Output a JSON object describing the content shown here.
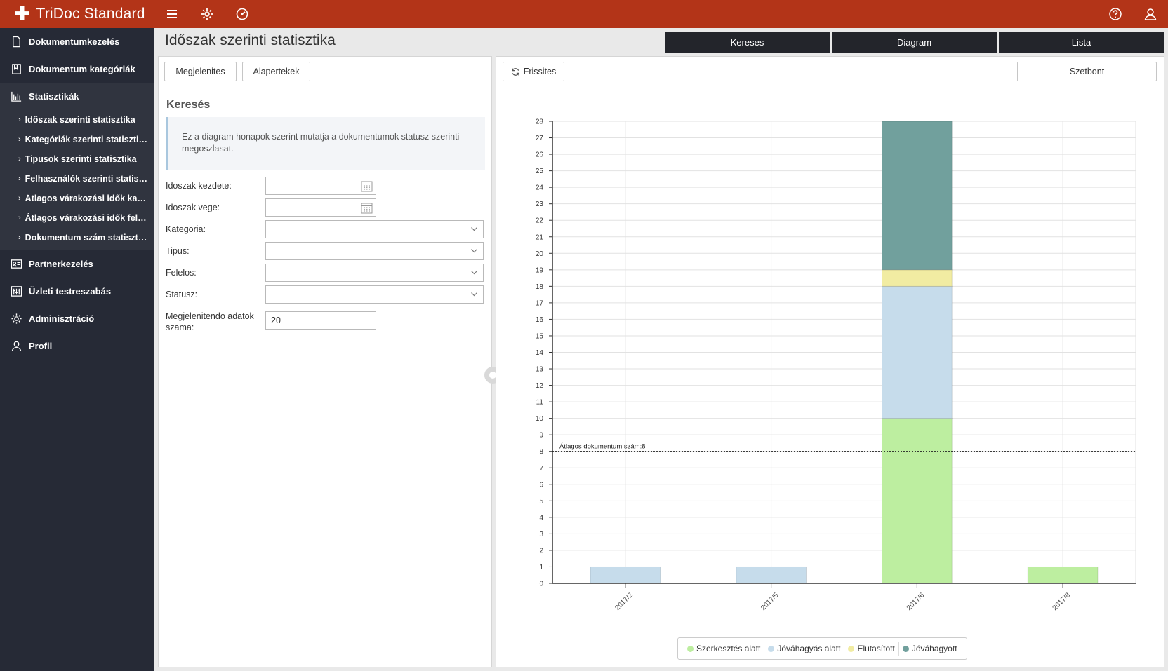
{
  "app": {
    "title": "TriDoc Standard"
  },
  "topbar": {
    "icons": [
      "menu-icon",
      "gear-icon",
      "dashboard-icon",
      "help-icon",
      "user-icon"
    ]
  },
  "sidebar": {
    "items": [
      {
        "label": "Dokumentumkezelés",
        "icon": "document-icon"
      },
      {
        "label": "Dokumentum kategóriák",
        "icon": "book-icon"
      },
      {
        "label": "Statisztikák",
        "icon": "chart-icon"
      },
      {
        "label": "Partnerkezelés",
        "icon": "contact-card-icon"
      },
      {
        "label": "Üzleti testreszabás",
        "icon": "sliders-icon"
      },
      {
        "label": "Adminisztráció",
        "icon": "gear-icon"
      },
      {
        "label": "Profil",
        "icon": "user-icon"
      }
    ],
    "sub_items": [
      {
        "label": "Időszak szerinti statisztika"
      },
      {
        "label": "Kategóriák szerinti statisztika"
      },
      {
        "label": "Tipusok szerinti statisztika"
      },
      {
        "label": "Felhasználók szerinti statisztika"
      },
      {
        "label": "Átlagos várakozási idők kategóriák szerint"
      },
      {
        "label": "Átlagos várakozási idők felhasználók szerint"
      },
      {
        "label": "Dokumentum szám statisztika"
      }
    ]
  },
  "page": {
    "title": "Időszak szerinti statisztika",
    "tabs": [
      {
        "label": "Kereses"
      },
      {
        "label": "Diagram"
      },
      {
        "label": "Lista"
      }
    ]
  },
  "left_panel": {
    "buttons": {
      "show": "Megjelenites",
      "defaults": "Alapertekek"
    },
    "section_title": "Keresés",
    "info": "Ez a diagram honapok szerint mutatja a dokumentumok statusz szerinti megoszlasat.",
    "form": {
      "start_label": "Idoszak kezdete:",
      "end_label": "Idoszak vege:",
      "category_label": "Kategoria:",
      "type_label": "Tipus:",
      "owner_label": "Felelos:",
      "status_label": "Statusz:",
      "count_label": "Megjelenitendo adatok szama:",
      "count_value": "20"
    }
  },
  "right_panel": {
    "refresh_label": "Frissites",
    "breakdown_label": "Szetbont"
  },
  "chart_data": {
    "type": "bar",
    "stacked": true,
    "categories": [
      "2017/2",
      "2017/5",
      "2017/6",
      "2017/8"
    ],
    "series": [
      {
        "name": "Szerkesztés alatt",
        "color": "#bdeea0",
        "values": [
          0,
          0,
          10,
          1
        ]
      },
      {
        "name": "Jóváhagyás alatt",
        "color": "#c6dceb",
        "values": [
          1,
          1,
          8,
          0
        ]
      },
      {
        "name": "Elutasított",
        "color": "#f1eca2",
        "values": [
          0,
          0,
          1,
          0
        ]
      },
      {
        "name": "Jóváhagyott",
        "color": "#71a09d",
        "values": [
          0,
          0,
          9,
          0
        ]
      }
    ],
    "ylim": [
      0,
      28
    ],
    "yticks": [
      0,
      1,
      2,
      3,
      4,
      5,
      6,
      7,
      8,
      9,
      10,
      11,
      12,
      13,
      14,
      15,
      16,
      17,
      18,
      19,
      20,
      21,
      22,
      23,
      24,
      25,
      26,
      27,
      28
    ],
    "grid": true,
    "reference_line": {
      "value": 8,
      "label": "Átlagos dokumentum szám:8"
    },
    "legend_position": "bottom-center"
  }
}
